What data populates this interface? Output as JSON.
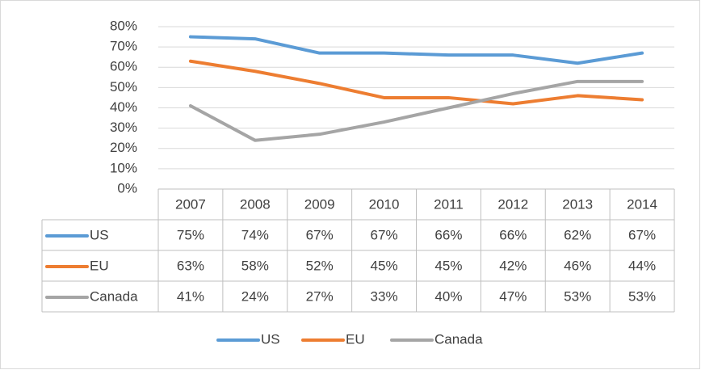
{
  "chart_data": {
    "type": "line",
    "categories": [
      "2007",
      "2008",
      "2009",
      "2010",
      "2011",
      "2012",
      "2013",
      "2014"
    ],
    "series": [
      {
        "name": "US",
        "color": "#5b9bd5",
        "values": [
          75,
          74,
          67,
          67,
          66,
          66,
          62,
          67
        ],
        "value_labels": [
          "75%",
          "74%",
          "67%",
          "67%",
          "66%",
          "66%",
          "62%",
          "67%"
        ]
      },
      {
        "name": "EU",
        "color": "#ed7d31",
        "values": [
          63,
          58,
          52,
          45,
          45,
          42,
          46,
          44
        ],
        "value_labels": [
          "63%",
          "58%",
          "52%",
          "45%",
          "45%",
          "42%",
          "46%",
          "44%"
        ]
      },
      {
        "name": "Canada",
        "color": "#a5a5a5",
        "values": [
          41,
          24,
          27,
          33,
          40,
          47,
          53,
          53
        ],
        "value_labels": [
          "41%",
          "24%",
          "27%",
          "33%",
          "40%",
          "47%",
          "53%",
          "53%"
        ]
      }
    ],
    "ylim": [
      0,
      80
    ],
    "yticks": [
      {
        "value": 0,
        "label": "0%"
      },
      {
        "value": 10,
        "label": "10%"
      },
      {
        "value": 20,
        "label": "20%"
      },
      {
        "value": 30,
        "label": "30%"
      },
      {
        "value": 40,
        "label": "40%"
      },
      {
        "value": 50,
        "label": "50%"
      },
      {
        "value": 60,
        "label": "60%"
      },
      {
        "value": 70,
        "label": "70%"
      },
      {
        "value": 80,
        "label": "80%"
      }
    ],
    "grid": true,
    "data_table": true,
    "legend": "bottom"
  }
}
